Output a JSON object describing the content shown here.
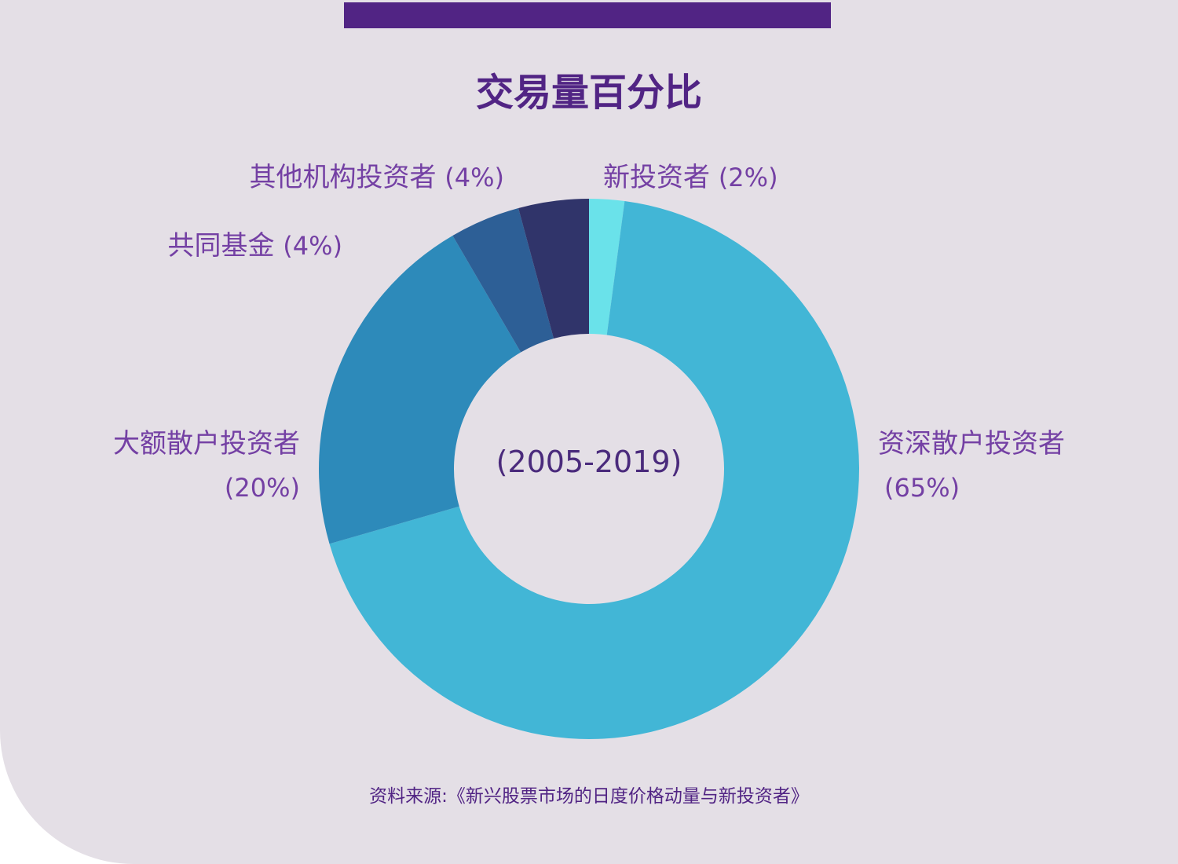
{
  "title": "交易量百分比",
  "source": "资料来源:《新兴股票市场的日度价格动量与新投资者》",
  "chart_data": {
    "type": "pie",
    "donut": true,
    "title": "交易量百分比",
    "center_text": "(2005-2019)",
    "slices": [
      {
        "label": "新投资者",
        "pct_text": "(2%)",
        "value": 2,
        "color": "#6ae2ea"
      },
      {
        "label": "资深散户投资者",
        "pct_text": "(65%)",
        "value": 65,
        "color": "#42b6d6"
      },
      {
        "label": "大额散户投资者",
        "pct_text": "(20%)",
        "value": 20,
        "color": "#2d8aba"
      },
      {
        "label": "共同基金",
        "pct_text": "(4%)",
        "value": 4,
        "color": "#2d5f96"
      },
      {
        "label": "其他机构投资者",
        "pct_text": "(4%)",
        "value": 4,
        "color": "#30346a"
      }
    ]
  },
  "colors": {
    "background": "#e4dfe6",
    "accent": "#512484",
    "label_text": "#7440a4"
  }
}
